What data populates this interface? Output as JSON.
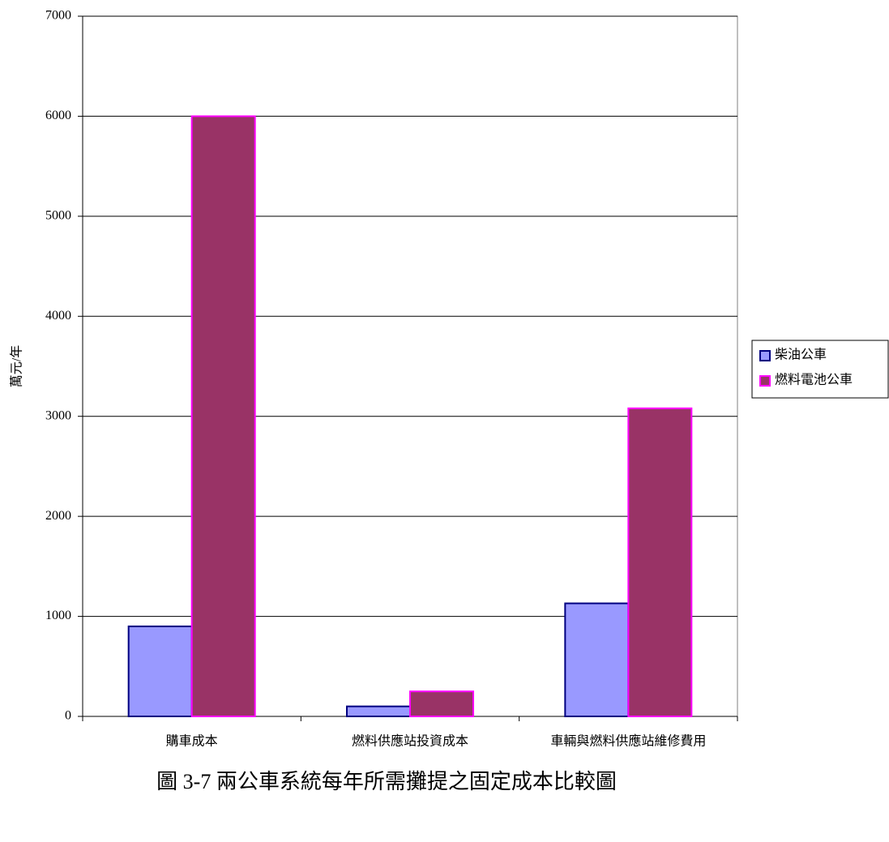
{
  "chart_data": {
    "type": "bar",
    "caption": "圖 3-7 兩公車系統每年所需攤提之固定成本比較圖",
    "y_label": "萬元/年",
    "categories": [
      "購車成本",
      "燃料供應站投資成本",
      "車輛與燃料供應站維修費用"
    ],
    "series": [
      {
        "name": "柴油公車",
        "color": "#9999ff",
        "stroke": "#000080",
        "values": [
          900,
          100,
          1130
        ]
      },
      {
        "name": "燃料電池公車",
        "color": "#993366",
        "stroke": "#ff00ff",
        "values": [
          6000,
          250,
          3080
        ]
      }
    ],
    "ylim": [
      0,
      7000
    ],
    "yticks": [
      0,
      1000,
      2000,
      3000,
      4000,
      5000,
      6000,
      7000
    ],
    "grid": true,
    "legend": "right"
  }
}
